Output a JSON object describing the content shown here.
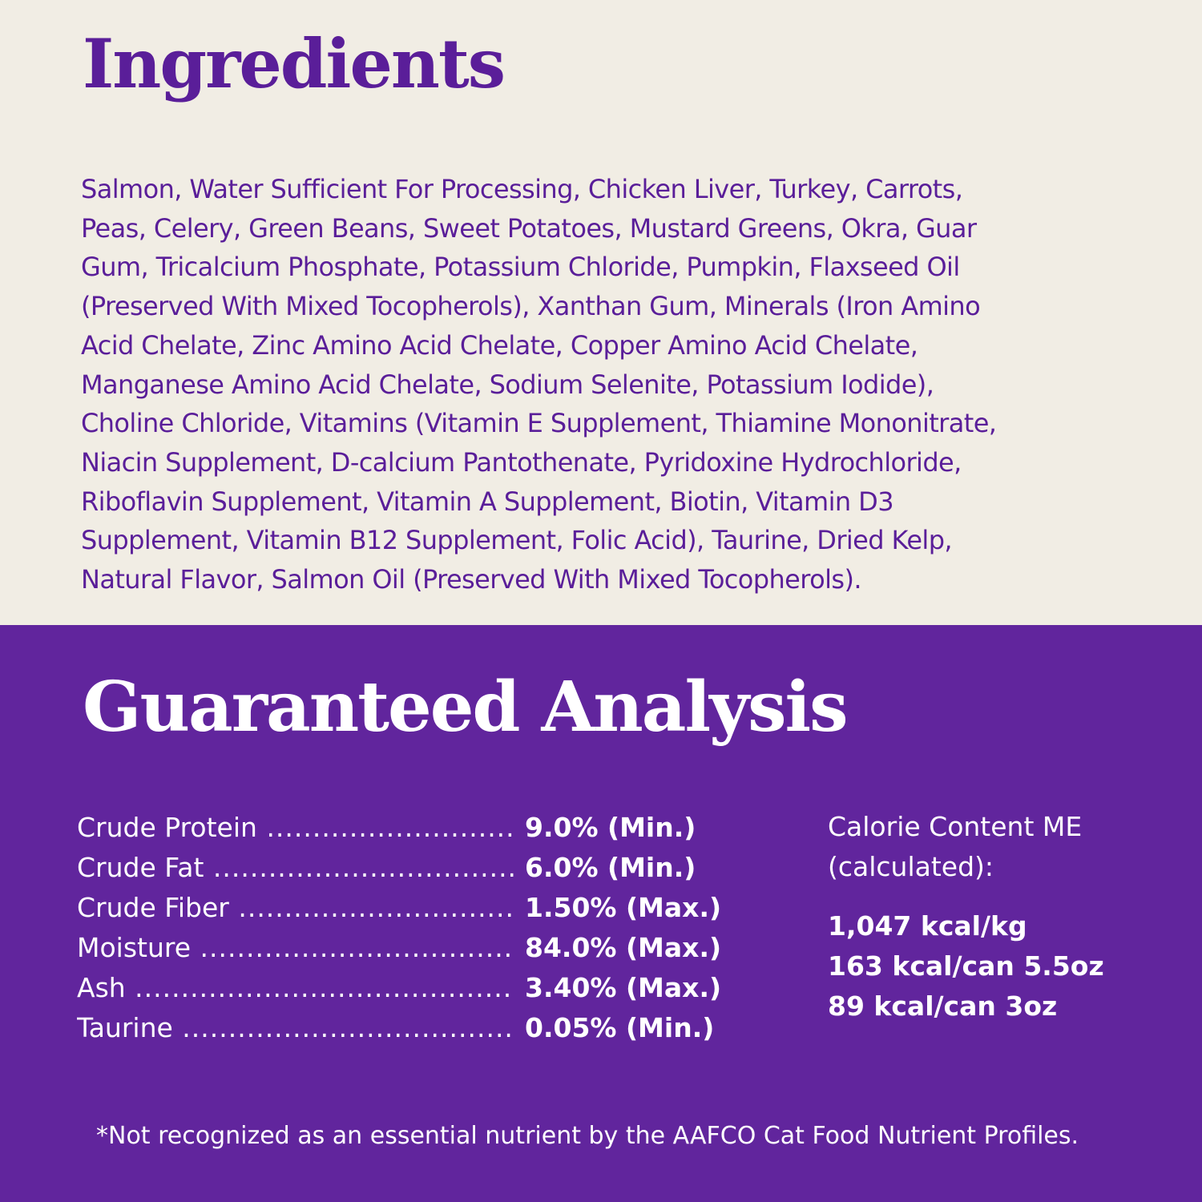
{
  "ingredients": {
    "title": "Ingredients",
    "lines": [
      "Salmon, Water Sufficient For Processing, Chicken Liver, Turkey, Carrots,",
      "Peas, Celery, Green Beans, Sweet Potatoes, Mustard Greens, Okra, Guar",
      "Gum, Tricalcium Phosphate, Potassium Chloride, Pumpkin, Flaxseed Oil",
      "(Preserved With Mixed Tocopherols), Xanthan Gum, Minerals (Iron Amino",
      "Acid Chelate, Zinc Amino Acid Chelate, Copper Amino Acid Chelate,",
      "Manganese Amino Acid Chelate, Sodium Selenite, Potassium Iodide),",
      "Choline Chloride, Vitamins (Vitamin E Supplement, Thiamine Mononitrate,",
      "Niacin Supplement, D-calcium Pantothenate, Pyridoxine Hydrochloride,",
      "Riboflavin Supplement, Vitamin A Supplement, Biotin, Vitamin D3",
      "Supplement, Vitamin B12 Supplement, Folic Acid), Taurine, Dried Kelp,",
      "Natural Flavor, Salmon Oil (Preserved With Mixed Tocopherols)."
    ]
  },
  "analysis": {
    "title": "Guaranteed Analysis",
    "rows": [
      {
        "label": "Crude  Protein",
        "value": "9.0% (Min.)"
      },
      {
        "label": "Crude Fat",
        "value": "6.0% (Min.)"
      },
      {
        "label": "Crude Fiber",
        "value": "1.50% (Max.)"
      },
      {
        "label": "Moisture",
        "value": "84.0% (Max.)"
      },
      {
        "label": "Ash",
        "value": "3.40% (Max.)"
      },
      {
        "label": "Taurine",
        "value": "0.05% (Min.)"
      }
    ],
    "calorie": {
      "heading1": "Calorie Content ME",
      "heading2": "(calculated):",
      "values": [
        "1,047 kcal/kg",
        "163 kcal/can 5.5oz",
        "89 kcal/can 3oz"
      ]
    },
    "footnote": "*Not recognized as an essential nutrient by the AAFCO Cat Food Nutrient Profiles."
  },
  "colors": {
    "cream": "#f1ede4",
    "purple": "#61259d",
    "text_purple": "#5a1e99"
  }
}
